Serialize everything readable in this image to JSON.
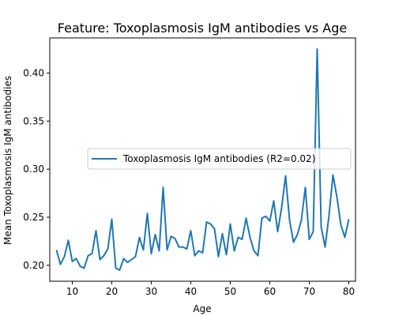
{
  "chart_data": {
    "type": "line",
    "title": "Feature: Toxoplasmosis IgM antibodies vs Age",
    "xlabel": "Age",
    "ylabel": "Mean Toxoplasmosis IgM antibodies",
    "xlim": [
      4.3,
      81.7
    ],
    "ylim": [
      0.1834,
      0.4365
    ],
    "xticks": [
      10,
      20,
      30,
      40,
      50,
      60,
      70,
      80
    ],
    "yticks": [
      0.2,
      0.25,
      0.3,
      0.35,
      0.4
    ],
    "ytick_labels": [
      "0.20",
      "0.25",
      "0.30",
      "0.35",
      "0.40"
    ],
    "grid": false,
    "legend_position": "center-right",
    "series": [
      {
        "name": "Toxoplasmosis IgM antibodies (R2=0.02)",
        "color": "#1f77b4",
        "x": [
          6,
          7,
          8,
          9,
          10,
          11,
          12,
          13,
          14,
          15,
          16,
          17,
          18,
          19,
          20,
          21,
          22,
          23,
          24,
          25,
          26,
          27,
          28,
          29,
          30,
          31,
          32,
          33,
          34,
          35,
          36,
          37,
          38,
          39,
          40,
          41,
          42,
          43,
          44,
          45,
          46,
          47,
          48,
          49,
          50,
          51,
          52,
          53,
          54,
          55,
          56,
          57,
          58,
          59,
          60,
          61,
          62,
          63,
          64,
          65,
          66,
          67,
          68,
          69,
          70,
          71,
          72,
          73,
          74,
          75,
          76,
          77,
          78,
          79,
          80
        ],
        "y": [
          0.216,
          0.201,
          0.209,
          0.226,
          0.204,
          0.207,
          0.199,
          0.197,
          0.21,
          0.212,
          0.236,
          0.206,
          0.21,
          0.217,
          0.248,
          0.197,
          0.195,
          0.207,
          0.203,
          0.206,
          0.209,
          0.229,
          0.216,
          0.254,
          0.212,
          0.232,
          0.215,
          0.281,
          0.216,
          0.23,
          0.228,
          0.219,
          0.219,
          0.217,
          0.236,
          0.21,
          0.215,
          0.213,
          0.245,
          0.243,
          0.238,
          0.209,
          0.233,
          0.211,
          0.243,
          0.215,
          0.229,
          0.227,
          0.249,
          0.229,
          0.215,
          0.21,
          0.249,
          0.251,
          0.246,
          0.267,
          0.235,
          0.26,
          0.293,
          0.247,
          0.224,
          0.232,
          0.247,
          0.281,
          0.227,
          0.235,
          0.425,
          0.24,
          0.219,
          0.252,
          0.294,
          0.271,
          0.242,
          0.229,
          0.248
        ]
      }
    ]
  }
}
